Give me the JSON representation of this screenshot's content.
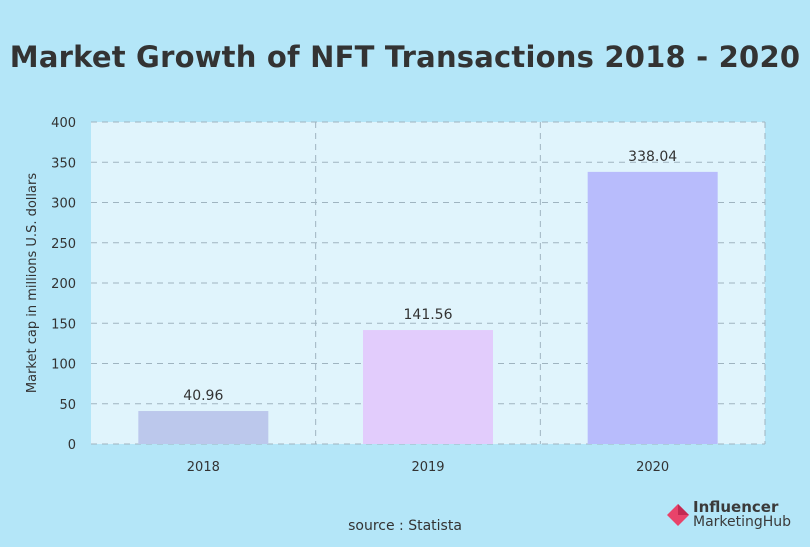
{
  "title": "Market Growth of NFT Transactions 2018 - 2020",
  "source": "source : Statista",
  "logo": {
    "line1": "Influencer",
    "line2": "MarketingHub",
    "icon": "influencer-marketing-hub-logo-icon"
  },
  "colors": {
    "background": "#b4e6f8",
    "plot_bg": "#e0f4fc",
    "bar_2018": "#bcc8ec",
    "bar_2019": "#e2ccfc",
    "bar_2020": "#b8bcfc",
    "logo_accent": "#e8436a"
  },
  "chart_data": {
    "type": "bar",
    "categories": [
      "2018",
      "2019",
      "2020"
    ],
    "values": [
      40.96,
      141.56,
      338.04
    ],
    "value_labels": [
      "40.96",
      "141.56",
      "338.04"
    ],
    "ylabel": "Market cap in millions U.S. dollars",
    "xlabel": "",
    "ylim": [
      0,
      400
    ],
    "yticks": [
      0,
      50,
      100,
      150,
      200,
      250,
      300,
      350,
      400
    ],
    "grid": true
  }
}
